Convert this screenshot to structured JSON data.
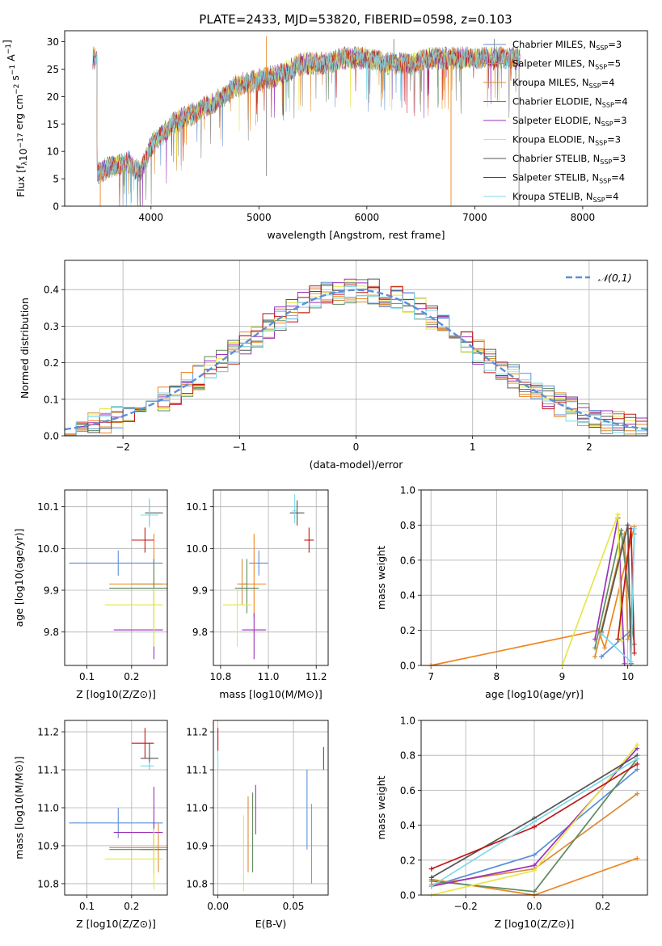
{
  "figure_title": "PLATE=2433, MJD=53820, FIBERID=0598, z=0.103",
  "models": [
    {
      "name": "Chabrier MILES",
      "nssp": "3",
      "color": "#5b8fd9"
    },
    {
      "name": "Salpeter MILES",
      "nssp": "5",
      "color": "#f0841e"
    },
    {
      "name": "Kroupa MILES",
      "nssp": "4",
      "color": "#d98c3a"
    },
    {
      "name": "Chabrier ELODIE",
      "nssp": "4",
      "color": "#5f8a5f"
    },
    {
      "name": "Salpeter ELODIE",
      "nssp": "3",
      "color": "#9a32b8"
    },
    {
      "name": "Kroupa ELODIE",
      "nssp": "3",
      "color": "#e6e64a"
    },
    {
      "name": "Chabrier STELIB",
      "nssp": "3",
      "color": "#555555"
    },
    {
      "name": "Salpeter STELIB",
      "nssp": "4",
      "color": "#c01818"
    },
    {
      "name": "Kroupa STELIB",
      "nssp": "4",
      "color": "#7fd8e8"
    }
  ],
  "chart_data": [
    {
      "id": "spectrum",
      "type": "line",
      "xlabel": "wavelength [Angstrom, rest frame]",
      "ylabel": "Flux [f_λ10^-17 erg cm^-2 s^-1 A^-1]",
      "xlim": [
        3200,
        8600
      ],
      "ylim": [
        0,
        32
      ],
      "xticks": [
        4000,
        5000,
        6000,
        7000,
        8000
      ],
      "yticks": [
        0,
        5,
        10,
        15,
        20,
        25,
        30
      ],
      "legend_position": "right",
      "data_trend": [
        [
          3500,
          6
        ],
        [
          3600,
          7
        ],
        [
          3800,
          8
        ],
        [
          3900,
          6
        ],
        [
          4000,
          11
        ],
        [
          4200,
          15
        ],
        [
          4400,
          17
        ],
        [
          4600,
          19
        ],
        [
          4800,
          22
        ],
        [
          5000,
          23
        ],
        [
          5200,
          24
        ],
        [
          5400,
          26
        ],
        [
          5600,
          26
        ],
        [
          5800,
          27
        ],
        [
          6000,
          27
        ],
        [
          6200,
          26
        ],
        [
          6400,
          26
        ],
        [
          6600,
          27
        ],
        [
          6800,
          27
        ],
        [
          7000,
          27
        ],
        [
          7200,
          27
        ],
        [
          7400,
          27
        ]
      ],
      "spikes_down": [
        [
          5070,
          5.5
        ],
        [
          6780,
          0
        ],
        [
          7410,
          0
        ],
        [
          3530,
          0
        ],
        [
          3900,
          0
        ]
      ],
      "spikes_up": [
        [
          5070,
          31
        ],
        [
          7180,
          30.5
        ],
        [
          7360,
          30
        ],
        [
          6250,
          30.5
        ]
      ]
    },
    {
      "id": "residuals",
      "type": "histogram",
      "xlabel": "(data-model)/error",
      "ylabel": "Normed distribution",
      "xlim": [
        -2.5,
        2.5
      ],
      "ylim": [
        0,
        0.48
      ],
      "xticks": [
        -2,
        -1,
        0,
        1,
        2
      ],
      "yticks": [
        0.0,
        0.1,
        0.2,
        0.3,
        0.4
      ],
      "bin_width": 0.1,
      "legend": [
        {
          "label": "𝒩(0,1)",
          "style": "dashed",
          "color": "#5b8fd9"
        }
      ],
      "legend_position": "top-right",
      "gaussian": {
        "mean": 0,
        "sigma": 1
      }
    },
    {
      "id": "age-vs-Z",
      "type": "scatter",
      "xlabel": "Z [log10(Z/Z⊙)]",
      "ylabel": "age  [log10(age/yr)]",
      "xlim": [
        0.05,
        0.28
      ],
      "ylim": [
        9.72,
        10.14
      ],
      "xticks": [
        0.1,
        0.2
      ],
      "yticks": [
        9.8,
        9.9,
        10.0,
        10.1
      ],
      "points": [
        {
          "x": 0.17,
          "y": 9.965,
          "xerr": [
            0.11,
            0.1
          ],
          "yerr": [
            0.03,
            0.03
          ]
        },
        {
          "x": 0.25,
          "y": 9.915,
          "xerr": [
            0.1,
            0.03
          ],
          "yerr": [
            0.08,
            0.12
          ]
        },
        {
          "x": 0.25,
          "y": 9.915,
          "xerr": [
            0.05,
            0.02
          ],
          "yerr": [
            0.05,
            0.06
          ]
        },
        {
          "x": 0.25,
          "y": 9.905,
          "xerr": [
            0.1,
            0.03
          ],
          "yerr": [
            0.06,
            0.07
          ]
        },
        {
          "x": 0.25,
          "y": 9.805,
          "xerr": [
            0.09,
            0.02
          ],
          "yerr": [
            0.07,
            0.04
          ]
        },
        {
          "x": 0.25,
          "y": 9.865,
          "xerr": [
            0.11,
            0.02
          ],
          "yerr": [
            0.1,
            0.04
          ]
        },
        {
          "x": 0.24,
          "y": 10.085,
          "xerr": [
            0.01,
            0.03
          ],
          "yerr": [
            0.03,
            0.03
          ]
        },
        {
          "x": 0.23,
          "y": 10.02,
          "xerr": [
            0.03,
            0.02
          ],
          "yerr": [
            0.03,
            0.03
          ]
        },
        {
          "x": 0.24,
          "y": 10.08,
          "xerr": [
            0.02,
            0.02
          ],
          "yerr": [
            0.03,
            0.04
          ]
        }
      ]
    },
    {
      "id": "age-vs-mass",
      "type": "scatter",
      "xlabel": "mass [log10(M/M⊙)]",
      "ylabel": "",
      "xlim": [
        10.77,
        11.25
      ],
      "ylim": [
        9.72,
        10.14
      ],
      "xticks": [
        10.8,
        11.0,
        11.2
      ],
      "yticks": [
        9.8,
        9.9,
        10.0,
        10.1
      ],
      "points": [
        {
          "x": 10.96,
          "y": 9.965,
          "xerr": [
            0.04,
            0.04
          ],
          "yerr": [
            0.03,
            0.03
          ]
        },
        {
          "x": 10.94,
          "y": 9.915,
          "xerr": [
            0.05,
            0.05
          ],
          "yerr": [
            0.08,
            0.12
          ]
        },
        {
          "x": 10.89,
          "y": 9.915,
          "xerr": [
            0.02,
            0.02
          ],
          "yerr": [
            0.05,
            0.06
          ]
        },
        {
          "x": 10.91,
          "y": 9.905,
          "xerr": [
            0.05,
            0.05
          ],
          "yerr": [
            0.06,
            0.07
          ]
        },
        {
          "x": 10.94,
          "y": 9.805,
          "xerr": [
            0.05,
            0.05
          ],
          "yerr": [
            0.07,
            0.04
          ]
        },
        {
          "x": 10.87,
          "y": 9.865,
          "xerr": [
            0.06,
            0.06
          ],
          "yerr": [
            0.1,
            0.04
          ]
        },
        {
          "x": 11.12,
          "y": 10.085,
          "xerr": [
            0.03,
            0.03
          ],
          "yerr": [
            0.03,
            0.03
          ]
        },
        {
          "x": 11.17,
          "y": 10.02,
          "xerr": [
            0.02,
            0.02
          ],
          "yerr": [
            0.03,
            0.03
          ]
        },
        {
          "x": 11.11,
          "y": 10.09,
          "xerr": [
            0.01,
            0.01
          ],
          "yerr": [
            0.03,
            0.04
          ]
        }
      ]
    },
    {
      "id": "weight-vs-age",
      "type": "line",
      "xlabel": "age  [log10(age/yr)]",
      "ylabel": "mass weight",
      "xlim": [
        6.85,
        10.3
      ],
      "ylim": [
        0,
        1
      ],
      "xticks": [
        7,
        8,
        9,
        10
      ],
      "yticks": [
        0.0,
        0.2,
        0.4,
        0.6,
        0.8,
        1.0
      ],
      "series": [
        {
          "x": [
            9.6,
            10.05,
            10.1
          ],
          "y": [
            0.05,
            0.2,
            0.75
          ]
        },
        {
          "x": [
            7.0,
            9.55,
            9.65,
            10.1
          ],
          "y": [
            0.0,
            0.2,
            0.1,
            0.79
          ]
        },
        {
          "x": [
            9.5,
            9.95,
            10.0,
            10.05
          ],
          "y": [
            0.05,
            0.75,
            0.15,
            0.2
          ]
        },
        {
          "x": [
            9.5,
            9.9,
            10.1
          ],
          "y": [
            0.1,
            0.77,
            0.12
          ]
        },
        {
          "x": [
            9.5,
            9.85,
            9.95
          ],
          "y": [
            0.15,
            0.84,
            0.01
          ]
        },
        {
          "x": [
            9.0,
            9.85,
            9.9
          ],
          "y": [
            0.0,
            0.86,
            0.14
          ]
        },
        {
          "x": [
            9.6,
            10.0,
            10.05
          ],
          "y": [
            0.19,
            0.8,
            0.01
          ]
        },
        {
          "x": [
            9.85,
            10.05,
            10.1
          ],
          "y": [
            0.15,
            0.78,
            0.07
          ]
        },
        {
          "x": [
            9.6,
            10.05,
            10.1
          ],
          "y": [
            0.18,
            0.02,
            0.78
          ]
        }
      ]
    },
    {
      "id": "mass-vs-Z",
      "type": "scatter",
      "xlabel": "Z [log10(Z/Z⊙)]",
      "ylabel": "mass [log10(M/M⊙)]",
      "xlim": [
        0.05,
        0.28
      ],
      "ylim": [
        10.77,
        11.23
      ],
      "xticks": [
        0.1,
        0.2
      ],
      "yticks": [
        10.8,
        10.9,
        11.0,
        11.1,
        11.2
      ],
      "points": [
        {
          "x": 0.17,
          "y": 10.96,
          "xerr": [
            0.11,
            0.1
          ],
          "yerr": [
            0.04,
            0.04
          ]
        },
        {
          "x": 0.25,
          "y": 10.895,
          "xerr": [
            0.1,
            0.03
          ],
          "yerr": [
            0.07,
            0.07
          ]
        },
        {
          "x": 0.26,
          "y": 10.89,
          "xerr": [
            0.04,
            0.01
          ],
          "yerr": [
            0.06,
            0.07
          ]
        },
        {
          "x": 0.25,
          "y": 10.89,
          "xerr": [
            0.1,
            0.03
          ],
          "yerr": [
            0.06,
            0.07
          ]
        },
        {
          "x": 0.25,
          "y": 10.935,
          "xerr": [
            0.09,
            0.02
          ],
          "yerr": [
            0.05,
            0.12
          ]
        },
        {
          "x": 0.25,
          "y": 10.865,
          "xerr": [
            0.11,
            0.02
          ],
          "yerr": [
            0.08,
            0.08
          ]
        },
        {
          "x": 0.24,
          "y": 11.13,
          "xerr": [
            0.02,
            0.02
          ],
          "yerr": [
            0.03,
            0.04
          ]
        },
        {
          "x": 0.23,
          "y": 11.17,
          "xerr": [
            0.03,
            0.02
          ],
          "yerr": [
            0.04,
            0.04
          ]
        },
        {
          "x": 0.24,
          "y": 11.11,
          "xerr": [
            0.02,
            0.01
          ],
          "yerr": [
            0.01,
            0.01
          ]
        }
      ]
    },
    {
      "id": "mass-vs-ebv",
      "type": "scatter",
      "xlabel": "E(B-V)",
      "ylabel": "",
      "xlim": [
        -0.003,
        0.073
      ],
      "ylim": [
        10.77,
        11.23
      ],
      "xticks": [
        0.0,
        0.05
      ],
      "yticks": [
        10.8,
        10.9,
        11.0,
        11.1,
        11.2
      ],
      "points": [
        {
          "x": 0.059,
          "y": 10.99,
          "xerr": [
            0,
            0
          ],
          "yerr": [
            0.1,
            0.11
          ]
        },
        {
          "x": 0.062,
          "y": 10.92,
          "xerr": [
            0,
            0
          ],
          "yerr": [
            0.12,
            0.09
          ]
        },
        {
          "x": 0.02,
          "y": 10.93,
          "xerr": [
            0,
            0
          ],
          "yerr": [
            0.1,
            0.1
          ]
        },
        {
          "x": 0.023,
          "y": 10.92,
          "xerr": [
            0,
            0
          ],
          "yerr": [
            0.09,
            0.12
          ]
        },
        {
          "x": 0.025,
          "y": 10.97,
          "xerr": [
            0,
            0
          ],
          "yerr": [
            0.04,
            0.09
          ]
        },
        {
          "x": 0.017,
          "y": 10.88,
          "xerr": [
            0,
            0
          ],
          "yerr": [
            0.1,
            0.1
          ]
        },
        {
          "x": 0.07,
          "y": 11.13,
          "xerr": [
            0,
            0
          ],
          "yerr": [
            0.03,
            0.03
          ]
        },
        {
          "x": 0.0,
          "y": 11.18,
          "xerr": [
            0,
            0
          ],
          "yerr": [
            0.03,
            0.03
          ]
        },
        {
          "x": 0.0,
          "y": 11.12,
          "xerr": [
            0,
            0
          ],
          "yerr": [
            0.02,
            0.02
          ]
        }
      ]
    },
    {
      "id": "weight-vs-Z",
      "type": "line",
      "xlabel": "Z [log10(Z/Z⊙)]",
      "ylabel": "mass weight",
      "xlim": [
        -0.33,
        0.33
      ],
      "ylim": [
        0,
        1
      ],
      "xticks": [
        -0.2,
        0.0,
        0.2
      ],
      "yticks": [
        0.0,
        0.2,
        0.4,
        0.6,
        0.8,
        1.0
      ],
      "series": [
        {
          "x": [
            -0.3,
            0.0,
            0.3
          ],
          "y": [
            0.05,
            0.23,
            0.72
          ]
        },
        {
          "x": [
            -0.3,
            0.0,
            0.3
          ],
          "y": [
            0.09,
            0.0,
            0.21
          ]
        },
        {
          "x": [
            -0.3,
            0.0,
            0.3
          ],
          "y": [
            0.06,
            0.15,
            0.58
          ]
        },
        {
          "x": [
            -0.3,
            0.0,
            0.3
          ],
          "y": [
            0.08,
            0.02,
            0.78
          ]
        },
        {
          "x": [
            -0.3,
            0.0,
            0.3
          ],
          "y": [
            0.05,
            0.17,
            0.84
          ]
        },
        {
          "x": [
            -0.3,
            0.0,
            0.3
          ],
          "y": [
            0.0,
            0.14,
            0.86
          ]
        },
        {
          "x": [
            -0.3,
            0.0,
            0.3
          ],
          "y": [
            0.1,
            0.44,
            0.8
          ]
        },
        {
          "x": [
            -0.3,
            0.0,
            0.3
          ],
          "y": [
            0.15,
            0.39,
            0.75
          ]
        },
        {
          "x": [
            -0.3,
            0.0,
            0.3
          ],
          "y": [
            0.05,
            0.42,
            0.78
          ]
        }
      ]
    }
  ]
}
